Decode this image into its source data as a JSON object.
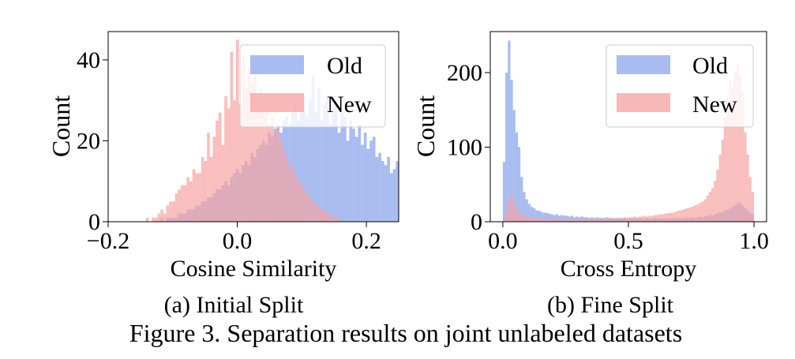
{
  "figure_caption": "Figure 3. Separation results on joint unlabeled datasets",
  "chart_data": [
    {
      "type": "histogram",
      "subcaption": "(a) Initial Split",
      "xlabel": "Cosine Similarity",
      "ylabel": "Count",
      "xlim": [
        -0.2,
        0.25
      ],
      "ylim": [
        0,
        47
      ],
      "xticks": [
        -0.2,
        0.0,
        0.2
      ],
      "xtick_labels": [
        "−0.2",
        "0.0",
        "0.2"
      ],
      "yticks": [
        0,
        20,
        40
      ],
      "ytick_labels": [
        "0",
        "20",
        "40"
      ],
      "legend_position": "top-right",
      "bin_start": -0.2,
      "bin_width": 0.0045,
      "series": [
        {
          "name": "Old",
          "color": "#6f8fe6",
          "values": [
            0,
            0,
            0,
            0,
            0,
            0,
            0,
            0,
            0,
            0,
            0,
            0,
            0,
            0,
            0,
            0,
            0,
            0,
            1,
            0,
            1,
            1,
            1,
            1,
            2,
            2,
            2,
            3,
            3,
            3,
            4,
            4,
            5,
            5,
            6,
            6,
            7,
            8,
            8,
            9,
            10,
            9,
            11,
            12,
            13,
            12,
            14,
            15,
            14,
            17,
            16,
            18,
            19,
            20,
            19,
            22,
            21,
            23,
            24,
            22,
            25,
            26,
            24,
            27,
            29,
            25,
            28,
            31,
            26,
            30,
            36,
            27,
            33,
            25,
            29,
            31,
            24,
            28,
            30,
            22,
            27,
            26,
            20,
            25,
            23,
            21,
            24,
            19,
            22,
            18,
            20,
            21,
            16,
            17,
            15,
            14,
            16,
            12,
            13,
            15,
            11,
            12,
            10,
            9,
            11,
            8
          ]
        },
        {
          "name": "New",
          "color": "#f7a2a1",
          "values": [
            0,
            0,
            0,
            0,
            0,
            0,
            0,
            0,
            0,
            0,
            0,
            0,
            0,
            1,
            0,
            1,
            1,
            2,
            3,
            2,
            4,
            5,
            5,
            7,
            8,
            9,
            9,
            11,
            10,
            13,
            12,
            12,
            16,
            15,
            22,
            16,
            21,
            25,
            27,
            19,
            31,
            28,
            42,
            30,
            45,
            29,
            41,
            33,
            38,
            34,
            36,
            29,
            33,
            27,
            30,
            24,
            26,
            22,
            23,
            20,
            18,
            16,
            13,
            14,
            11,
            10,
            9,
            8,
            7,
            6,
            5,
            4,
            4,
            3,
            3,
            2,
            2,
            1,
            1,
            1,
            0,
            0,
            0,
            0,
            0,
            0,
            0,
            0,
            0,
            0,
            0,
            0,
            0,
            0,
            0,
            0,
            0,
            0,
            0,
            0
          ]
        }
      ]
    },
    {
      "type": "histogram",
      "subcaption": "(b) Fine Split",
      "xlabel": "Cross Entropy",
      "ylabel": "Count",
      "xlim": [
        -0.05,
        1.05
      ],
      "ylim": [
        0,
        255
      ],
      "xticks": [
        0.0,
        0.5,
        1.0
      ],
      "xtick_labels": [
        "0.0",
        "0.5",
        "1.0"
      ],
      "yticks": [
        0,
        100,
        200
      ],
      "ytick_labels": [
        "0",
        "100",
        "200"
      ],
      "legend_position": "top-right",
      "bin_start": 0.0,
      "bin_width": 0.01,
      "series": [
        {
          "name": "Old",
          "color": "#6f8fe6",
          "values": [
            80,
            200,
            243,
            190,
            150,
            120,
            100,
            60,
            40,
            30,
            24,
            20,
            18,
            15,
            15,
            13,
            12,
            12,
            11,
            10,
            9,
            10,
            8,
            9,
            8,
            8,
            7,
            8,
            6,
            7,
            6,
            7,
            6,
            6,
            5,
            6,
            5,
            6,
            5,
            5,
            5,
            6,
            5,
            5,
            4,
            5,
            5,
            4,
            5,
            4,
            5,
            4,
            5,
            4,
            5,
            4,
            4,
            5,
            4,
            4,
            5,
            4,
            4,
            5,
            4,
            5,
            4,
            5,
            4,
            5,
            5,
            4,
            6,
            5,
            5,
            6,
            5,
            6,
            7,
            6,
            7,
            8,
            9,
            8,
            10,
            11,
            12,
            13,
            15,
            16,
            18,
            20,
            22,
            25,
            25,
            22,
            18,
            15,
            12,
            10
          ]
        },
        {
          "name": "New",
          "color": "#f7a2a1",
          "values": [
            5,
            15,
            30,
            38,
            25,
            18,
            12,
            10,
            8,
            7,
            6,
            6,
            5,
            5,
            5,
            4,
            4,
            4,
            4,
            4,
            3,
            4,
            3,
            3,
            4,
            3,
            3,
            4,
            3,
            3,
            3,
            4,
            3,
            3,
            4,
            3,
            4,
            3,
            4,
            4,
            4,
            5,
            4,
            5,
            5,
            4,
            5,
            5,
            6,
            5,
            6,
            6,
            7,
            6,
            7,
            7,
            8,
            7,
            8,
            8,
            9,
            9,
            10,
            10,
            11,
            11,
            12,
            12,
            13,
            14,
            15,
            16,
            17,
            18,
            19,
            20,
            22,
            23,
            25,
            27,
            30,
            35,
            40,
            45,
            55,
            70,
            90,
            110,
            140,
            160,
            190,
            180,
            200,
            210,
            195,
            175,
            120,
            90,
            60,
            40
          ]
        }
      ]
    }
  ]
}
